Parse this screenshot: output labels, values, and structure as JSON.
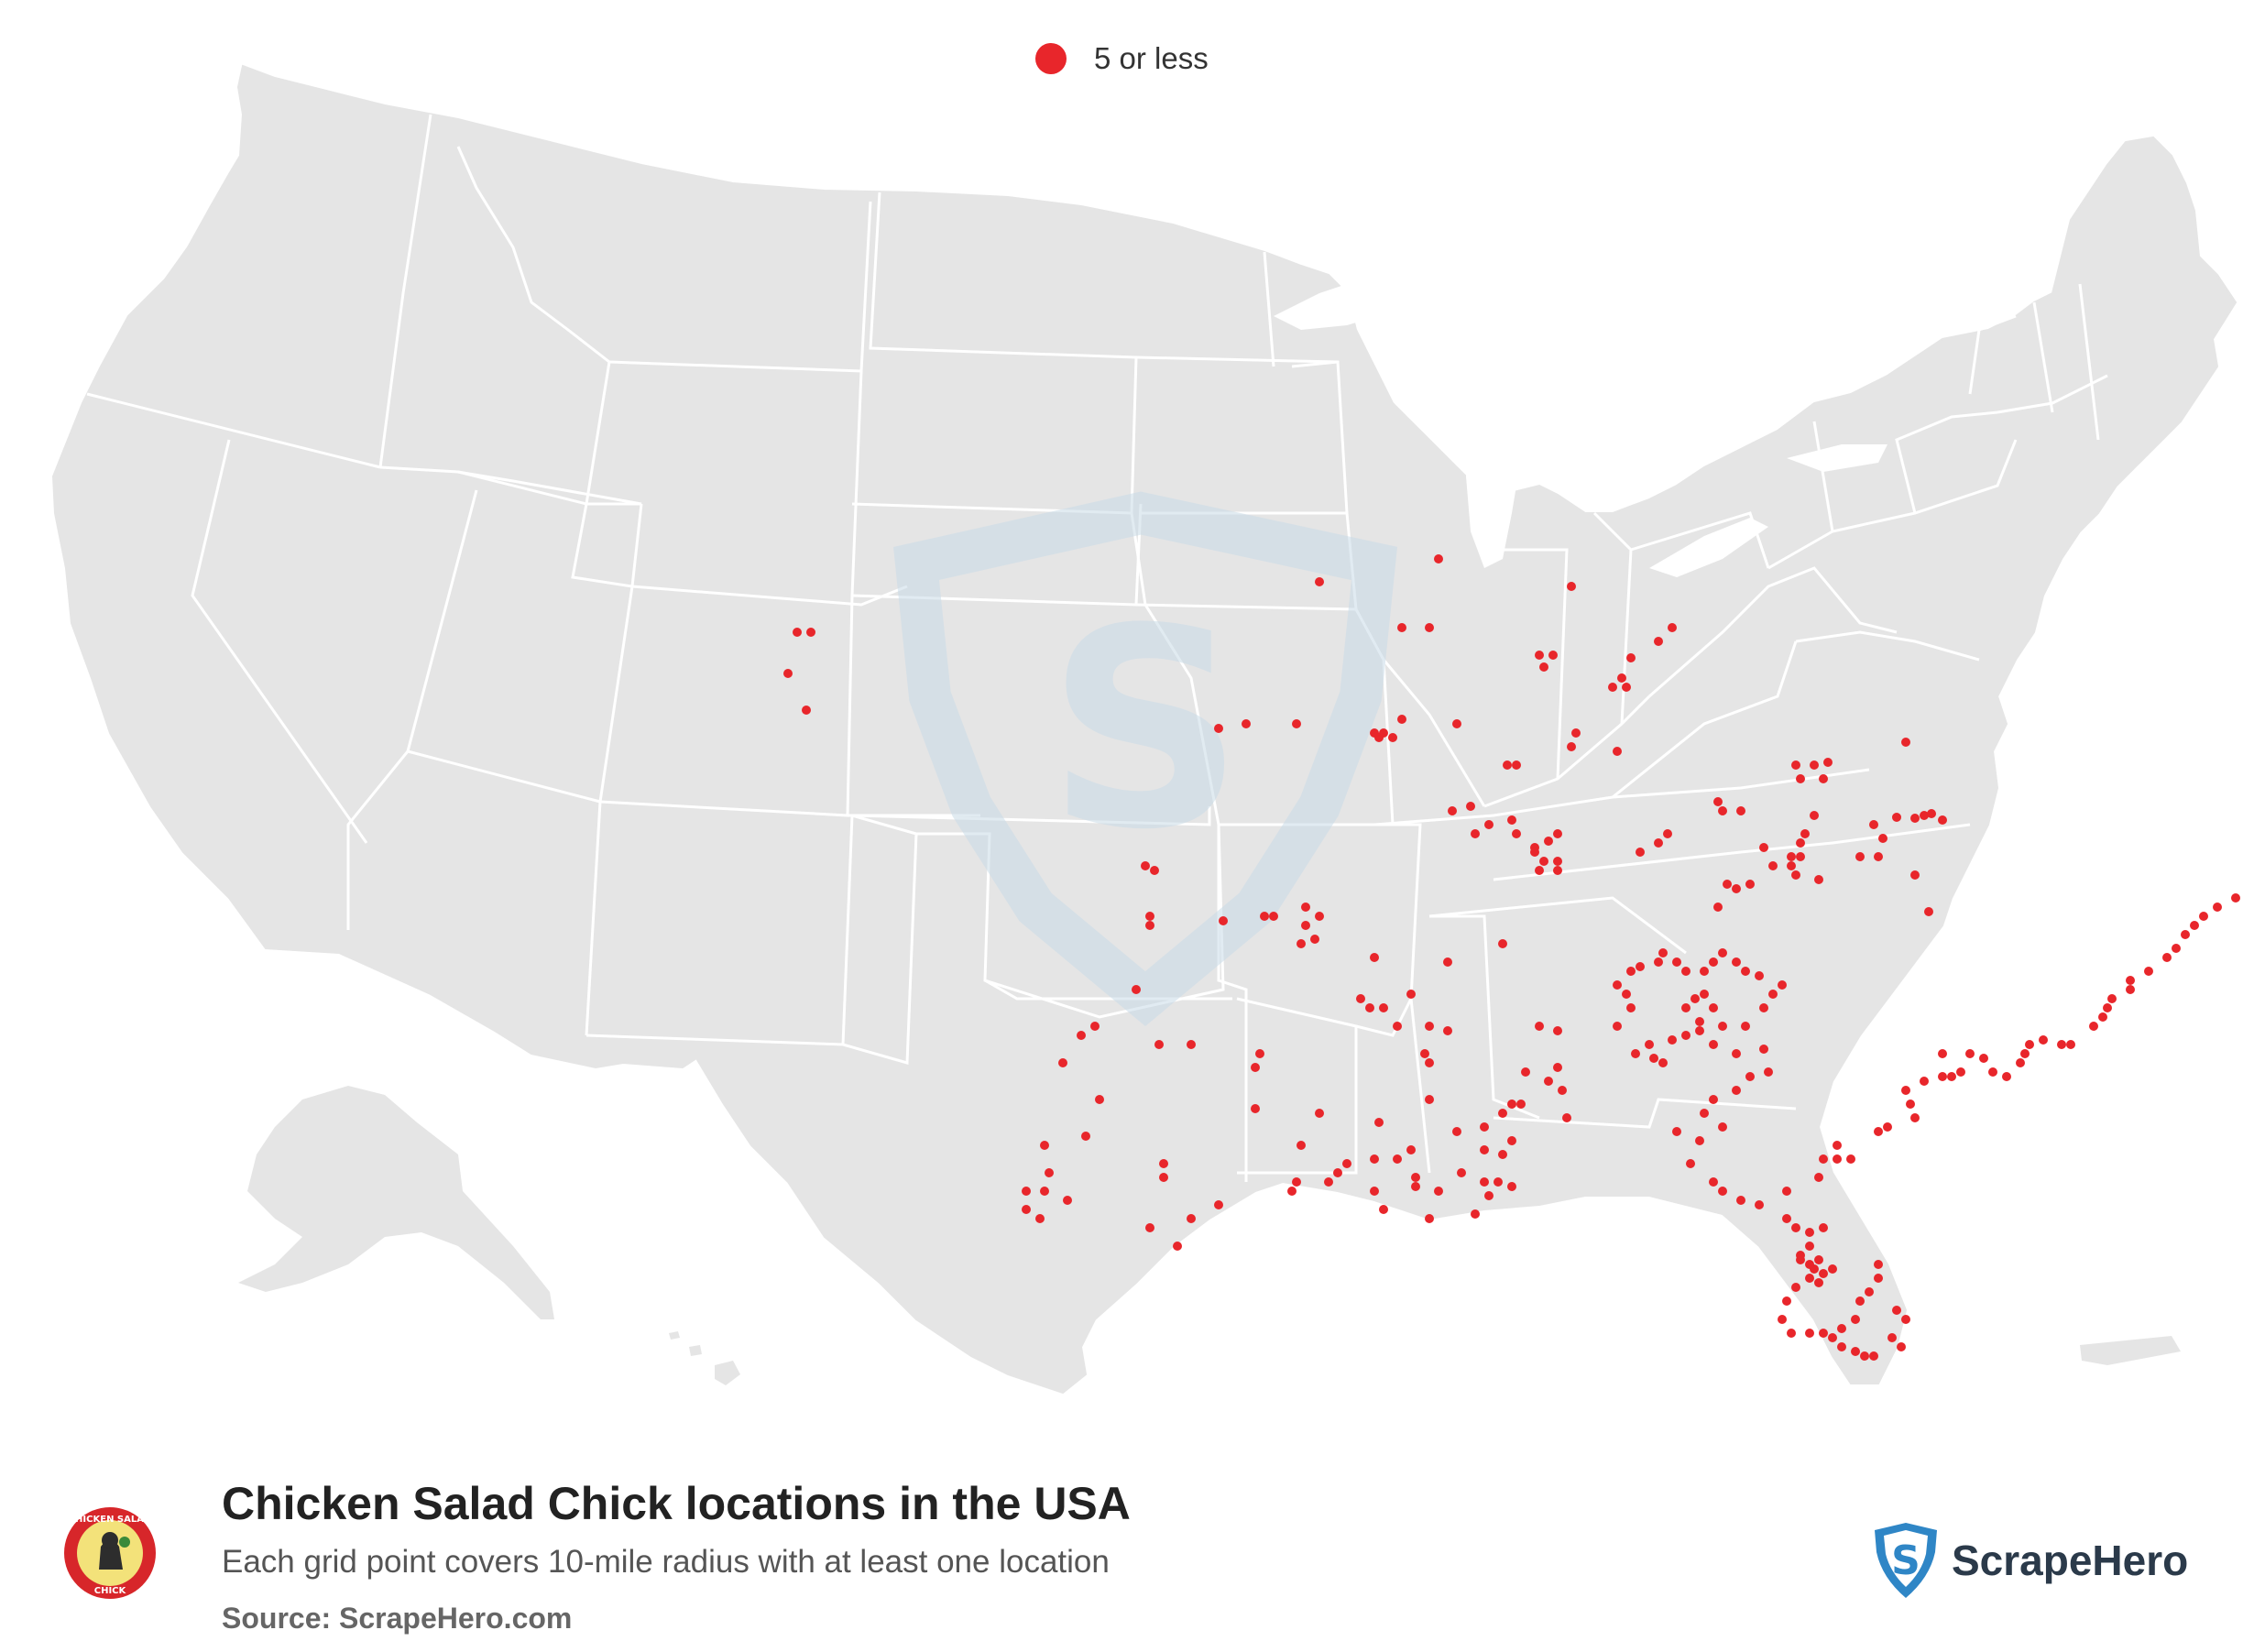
{
  "legend": {
    "label": "5 or less",
    "dot_color": "#e8262b"
  },
  "footer": {
    "title": "Chicken Salad Chick locations in the USA",
    "subtitle": "Each grid point covers 10-mile radius with at least one location",
    "source": "Source: ScrapeHero.com",
    "brand_name": "ScrapeHero",
    "logo_text": "CHICKEN SALAD CHICK"
  },
  "colors": {
    "land": "#e5e5e5",
    "border": "#ffffff",
    "dot": "#e8262b",
    "watermark": "#c9dbe7",
    "brand_blue": "#2f86c6"
  },
  "map": {
    "region": "United States",
    "marker_category": "5 or less"
  }
}
